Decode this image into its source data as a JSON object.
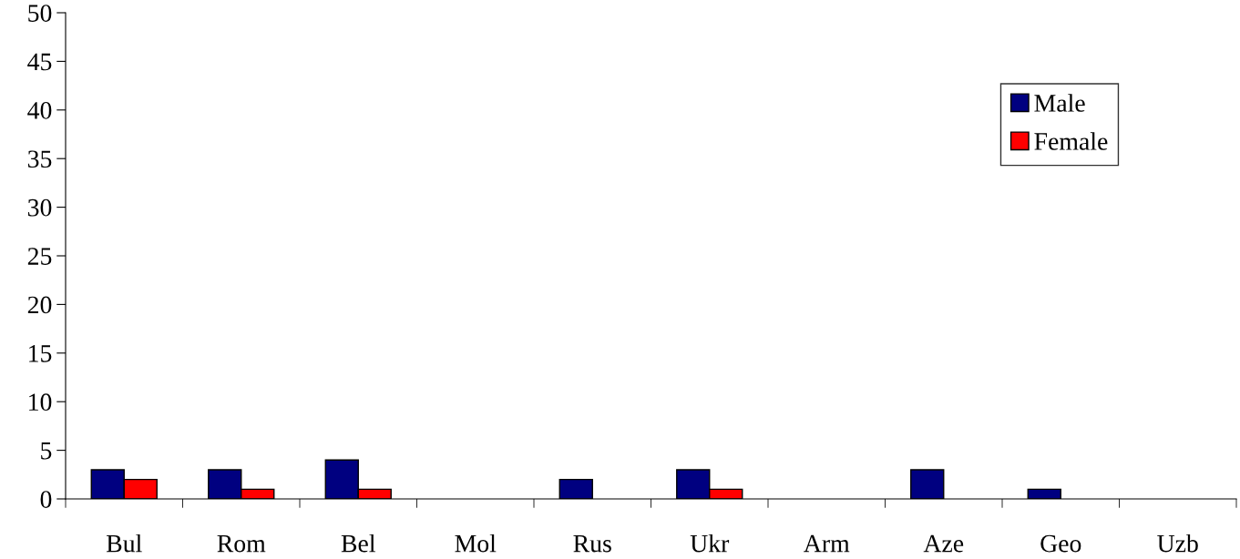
{
  "chart_data": {
    "type": "bar",
    "categories": [
      "Bul",
      "Rom",
      "Bel",
      "Mol",
      "Rus",
      "Ukr",
      "Arm",
      "Aze",
      "Geo",
      "Uzb"
    ],
    "series": [
      {
        "name": "Male",
        "color": "#000080",
        "values": [
          3,
          3,
          4,
          0,
          2,
          3,
          0,
          3,
          1,
          0
        ]
      },
      {
        "name": "Female",
        "color": "#ff0000",
        "values": [
          2,
          1,
          1,
          0,
          0,
          1,
          0,
          0,
          0,
          0
        ]
      }
    ],
    "ylim": [
      0,
      50
    ],
    "yticks": [
      0,
      5,
      10,
      15,
      20,
      25,
      30,
      35,
      40,
      45,
      50
    ],
    "grid": false,
    "legend": "top right"
  }
}
